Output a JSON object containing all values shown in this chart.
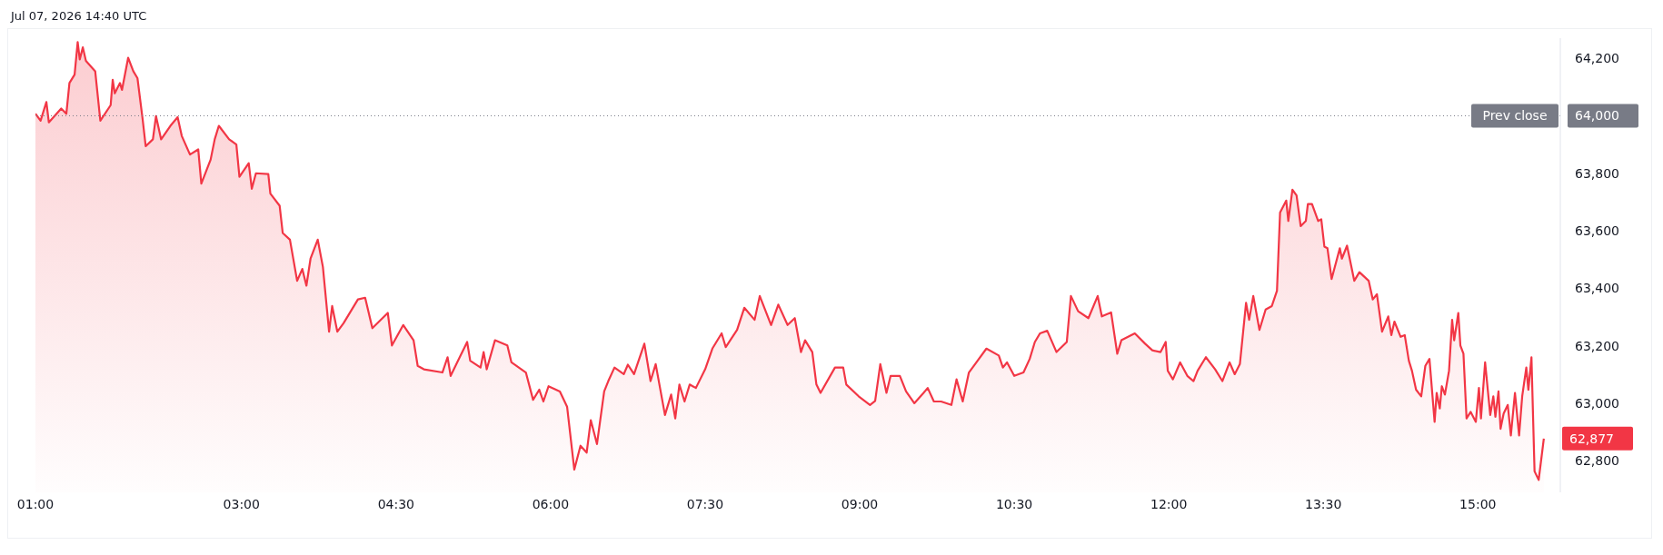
{
  "chart_data": {
    "type": "area",
    "annotations": [
      "Jul 07, 2026 14:40 UTC",
      {
        "text": "62,877",
        "x": 15.64,
        "y": 62877
      }
    ],
    "x": [
      1.0,
      1.05,
      1.106,
      1.13,
      1.25,
      1.3,
      1.33,
      1.38,
      1.41,
      1.43,
      1.46,
      1.49,
      1.58,
      1.63,
      1.73,
      1.75,
      1.77,
      1.82,
      1.84,
      1.9,
      1.95,
      1.99,
      2.04,
      2.07,
      2.14,
      2.17,
      2.22,
      2.31,
      2.38,
      2.42,
      2.5,
      2.58,
      2.61,
      2.68,
      2.7,
      2.74,
      2.78,
      2.88,
      2.95,
      2.98,
      3.07,
      3.1,
      3.14,
      3.26,
      3.28,
      3.37,
      3.4,
      3.47,
      3.54,
      3.59,
      3.63,
      3.67,
      3.74,
      3.79,
      3.85,
      3.88,
      3.93,
      3.99,
      4.13,
      4.2,
      4.27,
      4.42,
      4.46,
      4.57,
      4.67,
      4.71,
      4.77,
      4.95,
      5.0,
      5.03,
      5.19,
      5.22,
      5.32,
      5.35,
      5.38,
      5.46,
      5.58,
      5.62,
      5.76,
      5.83,
      5.89,
      5.93,
      5.98,
      6.09,
      6.16,
      6.23,
      6.29,
      6.35,
      6.39,
      6.45,
      6.52,
      6.56,
      6.62,
      6.71,
      6.75,
      6.81,
      6.91,
      6.97,
      7.02,
      7.11,
      7.17,
      7.21,
      7.25,
      7.3,
      7.35,
      7.41,
      7.5,
      7.57,
      7.66,
      7.7,
      7.81,
      7.88,
      7.98,
      8.03,
      8.14,
      8.21,
      8.3,
      8.37,
      8.43,
      8.47,
      8.54,
      8.58,
      8.62,
      8.76,
      8.84,
      8.87,
      8.99,
      9.1,
      9.15,
      9.2,
      9.26,
      9.3,
      9.39,
      9.45,
      9.53,
      9.62,
      9.66,
      9.72,
      9.79,
      9.89,
      9.94,
      10.0,
      10.06,
      10.12,
      10.23,
      10.35,
      10.39,
      10.43,
      10.5,
      10.59,
      10.65,
      10.7,
      10.75,
      10.82,
      10.91,
      11.01,
      11.05,
      11.12,
      11.22,
      11.31,
      11.35,
      11.44,
      11.5,
      11.54,
      11.67,
      11.77,
      11.84,
      11.92,
      11.97,
      11.99,
      12.04,
      12.11,
      12.18,
      12.24,
      12.28,
      12.36,
      12.45,
      12.52,
      12.59,
      12.64,
      12.69,
      12.75,
      12.78,
      12.82,
      12.88,
      12.94,
      13.0,
      13.05,
      13.08,
      13.14,
      13.16,
      13.2,
      13.24,
      13.28,
      13.33,
      13.35,
      13.39,
      13.45,
      13.48,
      13.51,
      13.54,
      13.58,
      13.66,
      13.68,
      13.73,
      13.8,
      13.85,
      13.94,
      13.98,
      14.02,
      14.07,
      14.13,
      14.16,
      14.19,
      14.25,
      14.29,
      14.33,
      14.36,
      14.4,
      14.45,
      14.49,
      14.53,
      14.58,
      14.6,
      14.63,
      14.65,
      14.68,
      14.72,
      14.75,
      14.77,
      14.81,
      14.83,
      14.86,
      14.89,
      14.93,
      14.98,
      15.01,
      15.03,
      15.07,
      15.12,
      15.15,
      15.17,
      15.2,
      15.22,
      15.25,
      15.29,
      15.32,
      15.36,
      15.4,
      15.43,
      15.47,
      15.49,
      15.52,
      15.55,
      15.59,
      15.64
    ],
    "series": [
      {
        "color": "#f23645",
        "values": [
          64007,
          63983,
          64048,
          63977,
          64025,
          64007,
          64114,
          64143,
          64256,
          64196,
          64238,
          64191,
          64155,
          63983,
          64037,
          64125,
          64078,
          64114,
          64090,
          64202,
          64155,
          64131,
          63989,
          63894,
          63918,
          63999,
          63918,
          63965,
          63995,
          63930,
          63865,
          63883,
          63764,
          63829,
          63847,
          63918,
          63965,
          63918,
          63900,
          63788,
          63835,
          63746,
          63800,
          63797,
          63729,
          63687,
          63592,
          63569,
          63426,
          63467,
          63409,
          63503,
          63569,
          63474,
          63249,
          63338,
          63249,
          63278,
          63361,
          63367,
          63261,
          63314,
          63201,
          63272,
          63219,
          63130,
          63118,
          63107,
          63160,
          63095,
          63213,
          63148,
          63124,
          63178,
          63118,
          63219,
          63201,
          63142,
          63107,
          63012,
          63047,
          63006,
          63059,
          63041,
          62988,
          62769,
          62852,
          62828,
          62941,
          62858,
          63041,
          63077,
          63124,
          63101,
          63134,
          63101,
          63207,
          63077,
          63136,
          62959,
          63030,
          62947,
          63065,
          63006,
          63065,
          63053,
          63118,
          63190,
          63243,
          63195,
          63255,
          63332,
          63290,
          63373,
          63272,
          63343,
          63272,
          63296,
          63178,
          63219,
          63178,
          63065,
          63036,
          63124,
          63124,
          63065,
          63024,
          62994,
          63008,
          63136,
          63036,
          63095,
          63095,
          63041,
          63000,
          63036,
          63053,
          63006,
          63006,
          62994,
          63083,
          63006,
          63107,
          63136,
          63190,
          63166,
          63124,
          63142,
          63095,
          63107,
          63154,
          63213,
          63243,
          63252,
          63178,
          63213,
          63373,
          63320,
          63296,
          63373,
          63302,
          63316,
          63172,
          63219,
          63243,
          63207,
          63184,
          63178,
          63213,
          63113,
          63083,
          63142,
          63095,
          63077,
          63113,
          63160,
          63118,
          63077,
          63142,
          63101,
          63136,
          63349,
          63290,
          63373,
          63255,
          63326,
          63338,
          63391,
          63663,
          63705,
          63634,
          63743,
          63723,
          63616,
          63634,
          63693,
          63693,
          63634,
          63640,
          63545,
          63539,
          63432,
          63539,
          63503,
          63548,
          63426,
          63456,
          63426,
          63361,
          63379,
          63249,
          63302,
          63237,
          63284,
          63231,
          63237,
          63148,
          63113,
          63047,
          63024,
          63130,
          63154,
          62935,
          63036,
          62982,
          63059,
          63030,
          63113,
          63290,
          63219,
          63314,
          63201,
          63172,
          62947,
          62970,
          62935,
          63053,
          62947,
          63142,
          62959,
          63024,
          62953,
          63041,
          62911,
          62964,
          62994,
          62888,
          63036,
          62888,
          63024,
          63124,
          63047,
          63160,
          62763,
          62733,
          62877
        ]
      }
    ],
    "xlim": [
      1,
      15.8
    ],
    "xticks": [
      {
        "value": 1,
        "label": "01:00"
      },
      {
        "value": 3,
        "label": "03:00"
      },
      {
        "value": 4.5,
        "label": "04:30"
      },
      {
        "value": 6,
        "label": "06:00"
      },
      {
        "value": 7.5,
        "label": "07:30"
      },
      {
        "value": 9,
        "label": "09:00"
      },
      {
        "value": 10.5,
        "label": "10:30"
      },
      {
        "value": 12,
        "label": "12:00"
      },
      {
        "value": 13.5,
        "label": "13:30"
      },
      {
        "value": 15,
        "label": "15:00"
      }
    ],
    "ylim": [
      62690,
      64270
    ],
    "yticks": [
      {
        "value": 62800,
        "label": "62,800"
      },
      {
        "value": 63000,
        "label": "63,000"
      },
      {
        "value": 63200,
        "label": "63,200"
      },
      {
        "value": 63400,
        "label": "63,400"
      },
      {
        "value": 63600,
        "label": "63,600"
      },
      {
        "value": 63800,
        "label": "63,800"
      },
      {
        "value": 64000,
        "label": "64,000"
      },
      {
        "value": 64200,
        "label": "64,200"
      }
    ],
    "ref_lines": [
      {
        "axis": "y",
        "value": 64000,
        "label": "Prev close",
        "color": "#787b86",
        "line_style": "dotted"
      }
    ],
    "grid": false,
    "legend": false
  }
}
